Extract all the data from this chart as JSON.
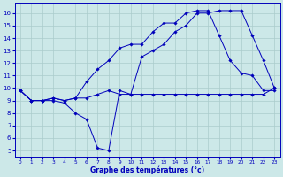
{
  "xlabel": "Graphe des températures (°c)",
  "bg_color": "#cce8e8",
  "grid_color": "#aacccc",
  "line_color": "#0000bb",
  "xlim": [
    -0.5,
    23.5
  ],
  "ylim": [
    4.5,
    16.8
  ],
  "xticks": [
    0,
    1,
    2,
    3,
    4,
    5,
    6,
    7,
    8,
    9,
    10,
    11,
    12,
    13,
    14,
    15,
    16,
    17,
    18,
    19,
    20,
    21,
    22,
    23
  ],
  "yticks": [
    5,
    6,
    7,
    8,
    9,
    10,
    11,
    12,
    13,
    14,
    15,
    16
  ],
  "series1_x": [
    0,
    1,
    2,
    3,
    4,
    5,
    6,
    7,
    8,
    9,
    10,
    11,
    12,
    13,
    14,
    15,
    16,
    17,
    18,
    19,
    20,
    21,
    22,
    23
  ],
  "series1_y": [
    9.8,
    9.0,
    9.0,
    9.2,
    9.0,
    9.2,
    9.2,
    9.5,
    9.8,
    9.5,
    9.5,
    9.5,
    9.5,
    9.5,
    9.5,
    9.5,
    9.5,
    9.5,
    9.5,
    9.5,
    9.5,
    9.5,
    9.5,
    10.0
  ],
  "series2_x": [
    0,
    1,
    2,
    3,
    4,
    5,
    6,
    7,
    8,
    9,
    10,
    11,
    12,
    13,
    14,
    15,
    16,
    17,
    18,
    19,
    20,
    21,
    22,
    23
  ],
  "series2_y": [
    9.8,
    9.0,
    9.0,
    9.2,
    9.0,
    9.2,
    10.5,
    11.5,
    12.2,
    13.2,
    13.5,
    13.5,
    14.5,
    15.2,
    15.2,
    16.0,
    16.2,
    16.2,
    14.2,
    12.2,
    11.2,
    11.0,
    9.8,
    9.8
  ],
  "series3_x": [
    0,
    1,
    2,
    3,
    4,
    5,
    6,
    7,
    8,
    9,
    10,
    11,
    12,
    13,
    14,
    15,
    16,
    17,
    18,
    19,
    20,
    21,
    22,
    23
  ],
  "series3_y": [
    9.8,
    9.0,
    9.0,
    9.0,
    8.8,
    8.0,
    7.5,
    5.2,
    5.0,
    9.8,
    9.5,
    12.5,
    13.0,
    13.5,
    14.5,
    15.0,
    16.0,
    16.0,
    16.2,
    16.2,
    16.2,
    14.2,
    12.2,
    10.0
  ]
}
